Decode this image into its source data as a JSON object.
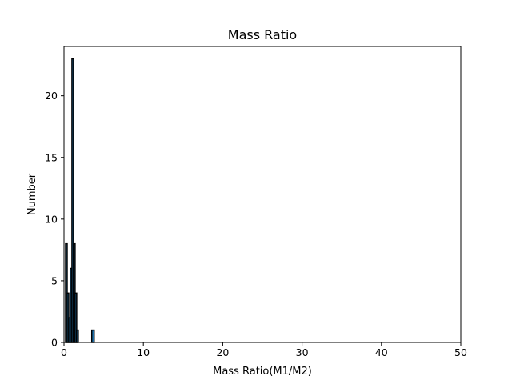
{
  "chart_data": {
    "type": "bar",
    "title": "Mass Ratio",
    "xlabel": "Mass Ratio(M1/M2)",
    "ylabel": "Number",
    "xlim": [
      0,
      50
    ],
    "ylim": [
      0,
      24
    ],
    "xticks": [
      0,
      10,
      20,
      30,
      40,
      50
    ],
    "yticks": [
      0,
      5,
      10,
      15,
      20
    ],
    "grid": false,
    "bar_color": "#1f77b4",
    "edge_color": "#000000",
    "bins": [
      {
        "x0": 0.2,
        "x1": 0.4,
        "value": 8
      },
      {
        "x0": 0.4,
        "x1": 0.6,
        "value": 4
      },
      {
        "x0": 0.6,
        "x1": 0.8,
        "value": 2
      },
      {
        "x0": 0.8,
        "x1": 1.0,
        "value": 6
      },
      {
        "x0": 1.0,
        "x1": 1.2,
        "value": 23
      },
      {
        "x0": 1.2,
        "x1": 1.4,
        "value": 8
      },
      {
        "x0": 1.4,
        "x1": 1.6,
        "value": 4
      },
      {
        "x0": 1.6,
        "x1": 1.8,
        "value": 1
      },
      {
        "x0": 3.5,
        "x1": 3.8,
        "value": 1
      }
    ]
  }
}
